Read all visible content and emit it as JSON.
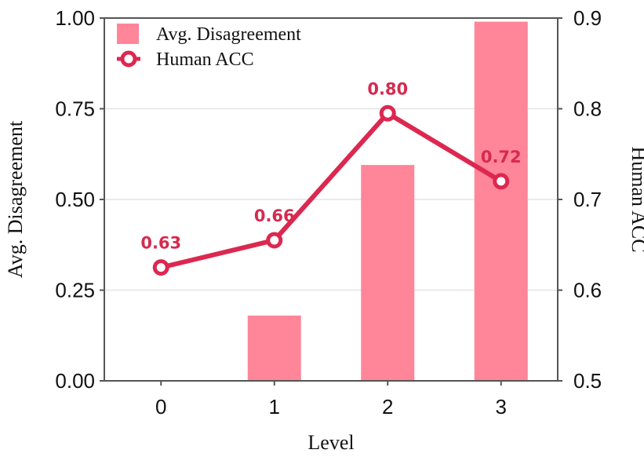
{
  "chart_data": {
    "type": "bar+line",
    "categories": [
      "0",
      "1",
      "2",
      "3"
    ],
    "xlabel": "Level",
    "y_left": {
      "label": "Avg. Disagreement",
      "lim": [
        0,
        1.0
      ],
      "ticks": [
        "0.00",
        "0.25",
        "0.50",
        "0.75",
        "1.00"
      ]
    },
    "y_right": {
      "label": "Human ACC",
      "lim": [
        0.5,
        0.9
      ],
      "ticks": [
        "0.5",
        "0.6",
        "0.7",
        "0.8",
        "0.9"
      ]
    },
    "series": [
      {
        "name": "Avg. Disagreement",
        "kind": "bar",
        "axis": "left",
        "color": "#ff8599",
        "values": [
          0.0,
          0.18,
          0.595,
          0.99
        ]
      },
      {
        "name": "Human ACC",
        "kind": "line",
        "axis": "right",
        "color": "#dc2850",
        "values": [
          0.625,
          0.655,
          0.795,
          0.72
        ],
        "labels": [
          "0.63",
          "0.66",
          "0.80",
          "0.72"
        ]
      }
    ],
    "legend_position": "top-left",
    "grid": "horizontal"
  }
}
